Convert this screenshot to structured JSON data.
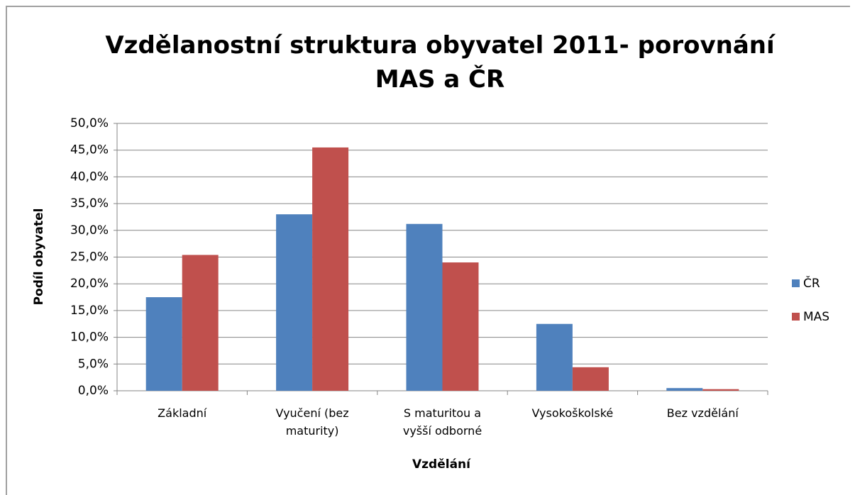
{
  "chart_data": {
    "type": "bar",
    "title": "Vzdělanostní struktura obyvatel 2011- porovnání\nMAS a ČR",
    "x_label": "Vzdělání",
    "y_label": "Podíl obyvatel",
    "categories": [
      "Základní",
      "Vyučení (bez\nmaturity)",
      "S maturitou a\nvyšší odborné",
      "Vysokoškolské",
      "Bez vzdělání"
    ],
    "series": [
      {
        "name": "ČR",
        "color": "#4f81bd",
        "values": [
          17.5,
          33.0,
          31.2,
          12.5,
          0.5
        ]
      },
      {
        "name": "MAS",
        "color": "#c0504d",
        "values": [
          25.4,
          45.5,
          24.0,
          4.4,
          0.3
        ]
      }
    ],
    "ylim": [
      0,
      50
    ],
    "yticks": [
      {
        "value": 0,
        "label": "0,0%"
      },
      {
        "value": 5,
        "label": "5,0%"
      },
      {
        "value": 10,
        "label": "10,0%"
      },
      {
        "value": 15,
        "label": "15,0%"
      },
      {
        "value": 20,
        "label": "20,0%"
      },
      {
        "value": 25,
        "label": "25,0%"
      },
      {
        "value": 30,
        "label": "30,0%"
      },
      {
        "value": 35,
        "label": "35,0%"
      },
      {
        "value": 40,
        "label": "40,0%"
      },
      {
        "value": 45,
        "label": "45,0%"
      },
      {
        "value": 50,
        "label": "50,0%"
      }
    ],
    "grid": true,
    "legend": "right"
  }
}
